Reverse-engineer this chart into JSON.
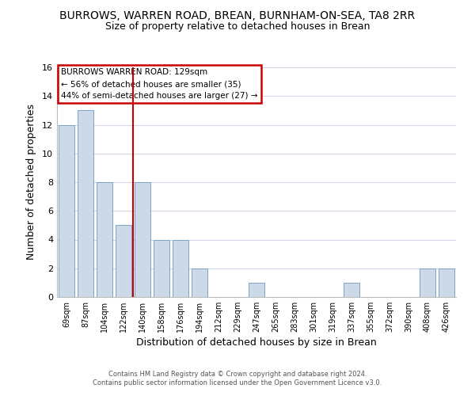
{
  "title": "BURROWS, WARREN ROAD, BREAN, BURNHAM-ON-SEA, TA8 2RR",
  "subtitle": "Size of property relative to detached houses in Brean",
  "xlabel": "Distribution of detached houses by size in Brean",
  "ylabel": "Number of detached properties",
  "bar_labels": [
    "69sqm",
    "87sqm",
    "104sqm",
    "122sqm",
    "140sqm",
    "158sqm",
    "176sqm",
    "194sqm",
    "212sqm",
    "229sqm",
    "247sqm",
    "265sqm",
    "283sqm",
    "301sqm",
    "319sqm",
    "337sqm",
    "355sqm",
    "372sqm",
    "390sqm",
    "408sqm",
    "426sqm"
  ],
  "bar_values": [
    12,
    13,
    8,
    5,
    8,
    4,
    4,
    2,
    0,
    0,
    1,
    0,
    0,
    0,
    0,
    1,
    0,
    0,
    0,
    2,
    2
  ],
  "bar_color": "#ccd9e8",
  "bar_edge_color": "#7ba4c7",
  "vline_x": 3.5,
  "vline_color": "#cc0000",
  "ylim": [
    0,
    16
  ],
  "yticks": [
    0,
    2,
    4,
    6,
    8,
    10,
    12,
    14,
    16
  ],
  "annotation_title": "BURROWS WARREN ROAD: 129sqm",
  "annotation_line1": "← 56% of detached houses are smaller (35)",
  "annotation_line2": "44% of semi-detached houses are larger (27) →",
  "annotation_box_edge": "#cc0000",
  "footer_line1": "Contains HM Land Registry data © Crown copyright and database right 2024.",
  "footer_line2": "Contains public sector information licensed under the Open Government Licence v3.0.",
  "background_color": "#ffffff",
  "grid_color": "#d0d8e8"
}
